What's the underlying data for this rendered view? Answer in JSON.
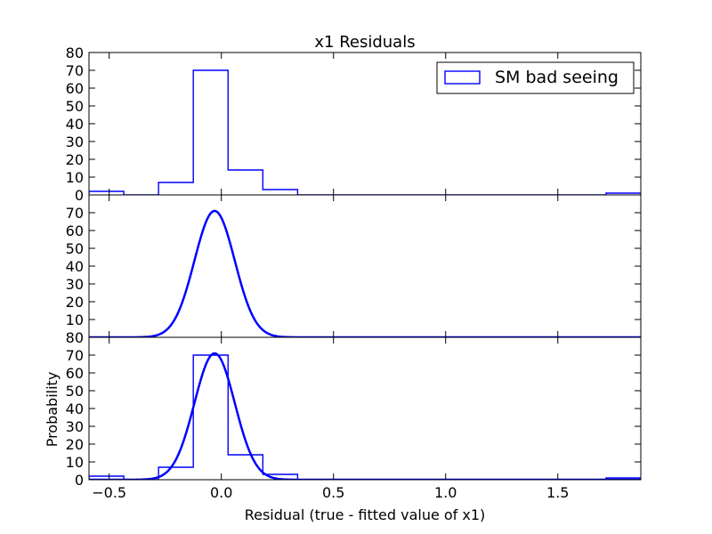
{
  "chart_data": {
    "type": "histogram-with-gaussian-fit",
    "title": "x1 Residuals",
    "xlabel": "Residual (true - fitted value of x1)",
    "ylabel": "Probability",
    "xlim": [
      -0.59,
      1.87
    ],
    "ylim": [
      0,
      80
    ],
    "x_ticks": [
      -0.5,
      0.0,
      0.5,
      1.0,
      1.5
    ],
    "x_tick_labels": [
      "−0.5",
      "0.0",
      "0.5",
      "1.0",
      "1.5"
    ],
    "y_ticks": [
      0,
      10,
      20,
      30,
      40,
      50,
      60,
      70,
      80
    ],
    "y_tick_labels_top": [
      "0",
      "10",
      "20",
      "30",
      "40",
      "50",
      "60",
      "70",
      "80"
    ],
    "y_tick_labels_middle": [
      "80",
      "10",
      "20",
      "30",
      "40",
      "50",
      "60",
      "70"
    ],
    "y_tick_labels_bottom": [
      "0",
      "10",
      "20",
      "30",
      "40",
      "50",
      "60",
      "70"
    ],
    "color": "#0000ff",
    "legend": {
      "label": "SM bad seeing",
      "placement": "upper-right"
    },
    "histogram": {
      "bin_edges": [
        -0.59,
        -0.435,
        -0.28,
        -0.125,
        0.03,
        0.185,
        0.34,
        0.495,
        0.65,
        0.805,
        0.96,
        1.115,
        1.27,
        1.425,
        1.58,
        1.715,
        1.87
      ],
      "values": [
        2,
        0,
        7,
        70,
        14,
        3,
        0,
        0,
        0,
        0,
        0,
        0,
        0,
        0,
        0,
        1
      ]
    },
    "gaussian": {
      "amplitude": 71,
      "mean": -0.03,
      "sigma": 0.09
    },
    "panels": [
      {
        "name": "top",
        "show": [
          "histogram"
        ],
        "legend": true
      },
      {
        "name": "middle",
        "show": [
          "gaussian"
        ],
        "legend": false
      },
      {
        "name": "bottom",
        "show": [
          "histogram",
          "gaussian"
        ],
        "legend": false
      }
    ]
  }
}
